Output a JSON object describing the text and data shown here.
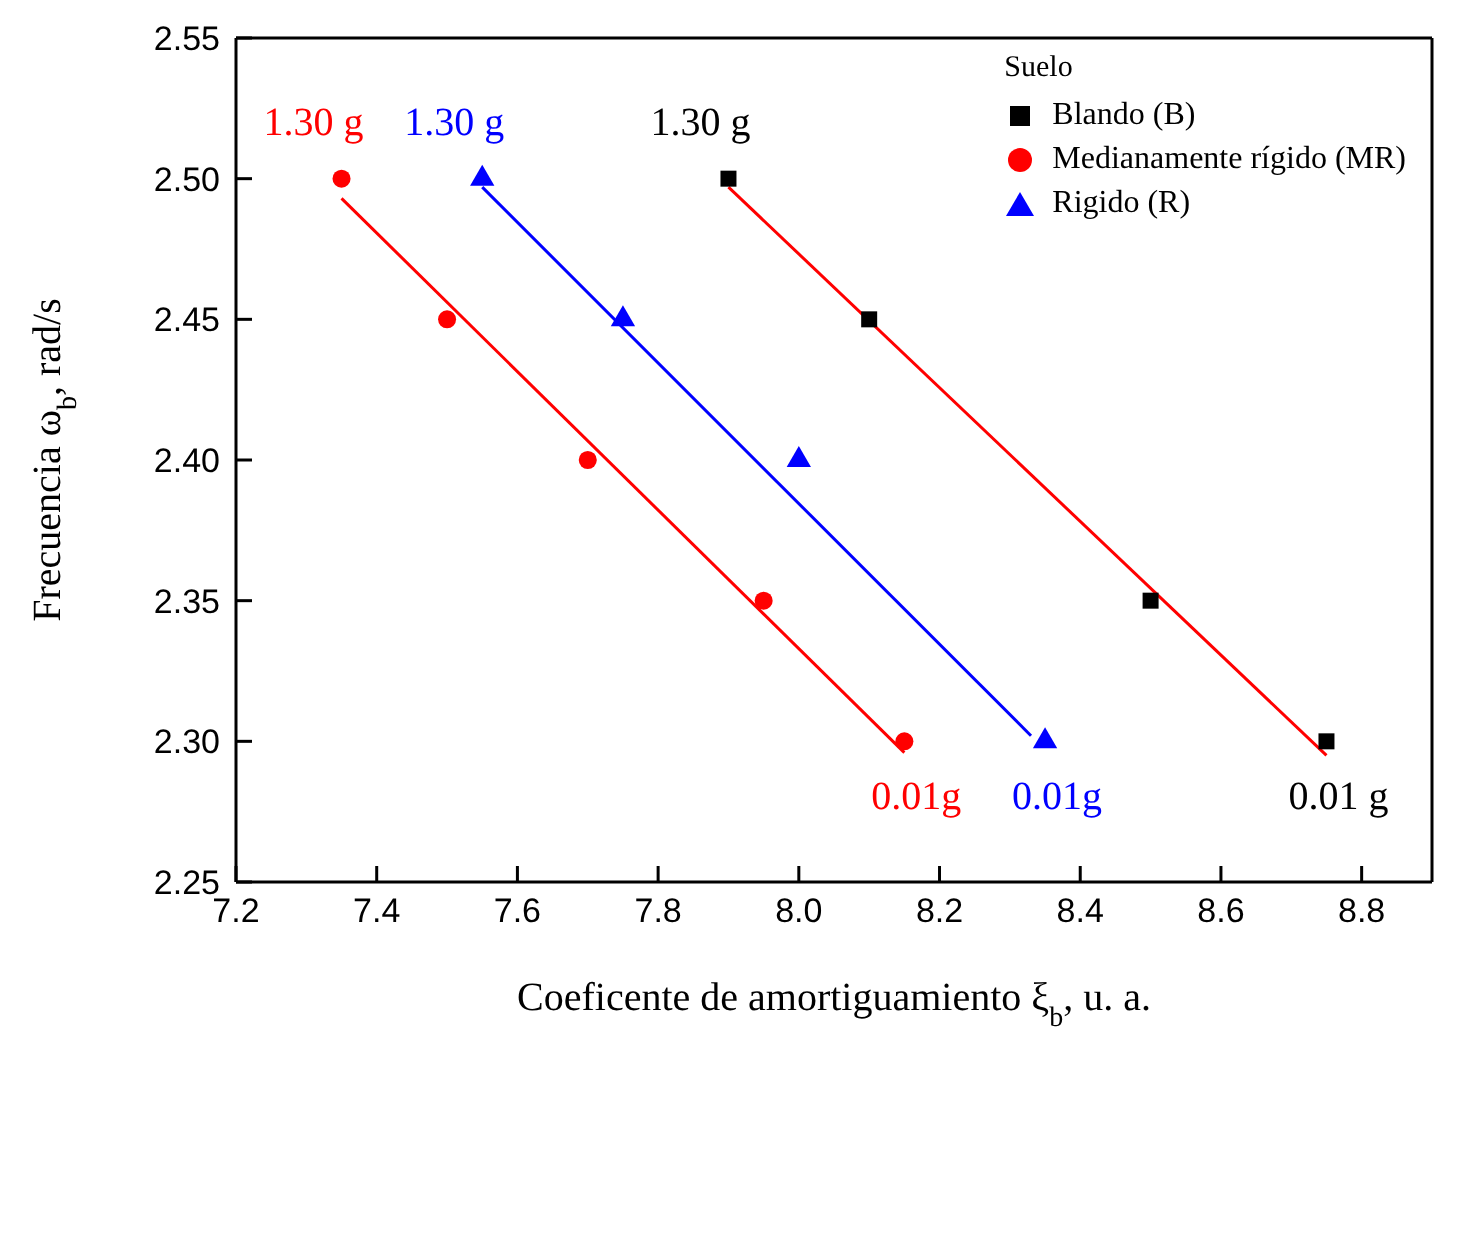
{
  "chart_data": {
    "type": "scatter",
    "xlabel": "Coeficente de amortiguamiento ξ$_{b}$, u. a.",
    "ylabel": "Frecuencia ω$_{b}$, rad/s",
    "legend_title": "Suelo",
    "legend": "top right",
    "xlim": [
      7.2,
      8.9
    ],
    "xticks": [
      7.2,
      7.4,
      7.6,
      7.8,
      {
        "value": 8,
        "label": "8.0"
      },
      8.2,
      8.4,
      8.6,
      8.8
    ],
    "ylim": [
      2.25,
      2.55
    ],
    "yticks": [
      2.25,
      {
        "value": 2.3,
        "label": "2.30"
      },
      2.35,
      {
        "value": 2.4,
        "label": "2.40"
      },
      2.45,
      {
        "value": 2.5,
        "label": "2.50"
      },
      2.55
    ],
    "series": [
      {
        "name": "Blando (B)",
        "marker": "square",
        "color": "#000000",
        "x": [
          7.9,
          8.1,
          8.5,
          8.75
        ],
        "values": [
          2.5,
          2.45,
          2.35,
          2.3
        ]
      },
      {
        "name": "Medianamente rígido (MR)",
        "marker": "circle",
        "color": "#ff0000",
        "x": [
          7.35,
          7.5,
          7.7,
          7.95,
          8.15
        ],
        "values": [
          2.5,
          2.45,
          2.4,
          2.35,
          2.3
        ]
      },
      {
        "name": "Rigido (R)",
        "marker": "triangle",
        "color": "#0000ff",
        "x": [
          7.55,
          7.75,
          8.0,
          8.35
        ],
        "values": [
          2.5,
          2.45,
          2.4,
          2.3
        ]
      },
      {
        "type": "line",
        "line_style": "solid",
        "marker": "none",
        "color": "#ff0000",
        "x": [
          7.9,
          8.75
        ],
        "values": [
          2.497,
          2.295
        ]
      },
      {
        "type": "line",
        "line_style": "solid",
        "marker": "none",
        "color": "#ff0000",
        "x": [
          7.35,
          8.15
        ],
        "values": [
          2.493,
          2.296
        ]
      },
      {
        "type": "line",
        "line_style": "solid",
        "marker": "none",
        "color": "#0000ff",
        "x": [
          7.55,
          8.33
        ],
        "values": [
          2.497,
          2.302
        ]
      }
    ],
    "annotations": [
      {
        "text": "1.30 g",
        "x": 7.35,
        "y": 2.5
      },
      {
        "text": "1.30 g",
        "x": 7.55,
        "y": 2.5
      },
      {
        "text": "1.30 g",
        "x": 7.9,
        "y": 2.5
      },
      {
        "text": "0.01g",
        "x": 8.15,
        "y": 2.3
      },
      {
        "text": "0.01g",
        "x": 8.35,
        "y": 2.3
      },
      {
        "text": "0.01 g",
        "x": 8.75,
        "y": 2.3
      }
    ]
  }
}
